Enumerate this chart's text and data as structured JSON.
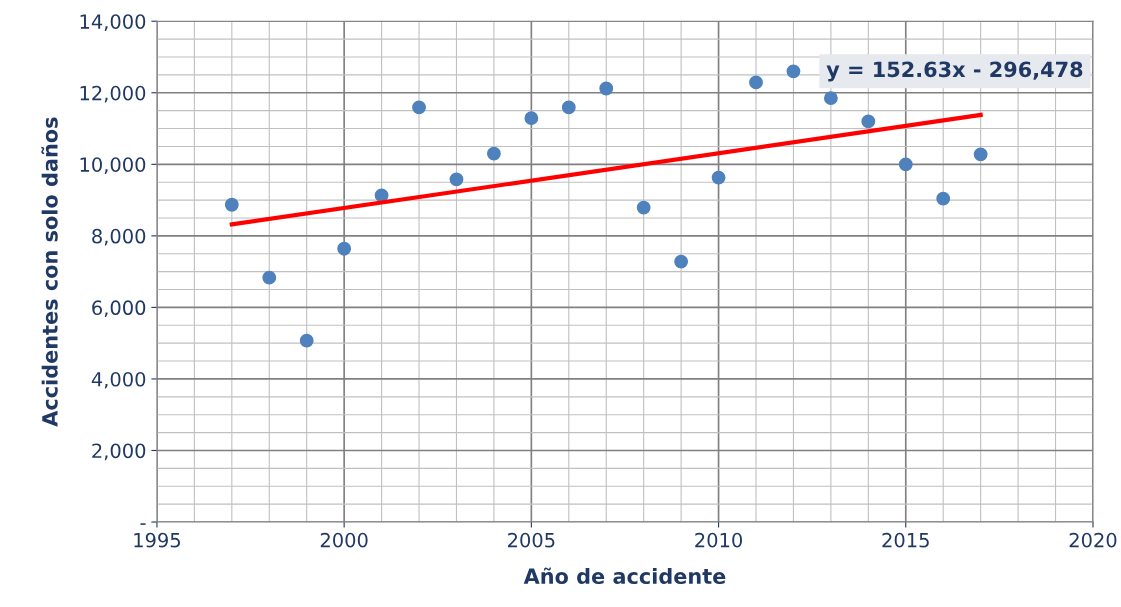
{
  "chart_data": {
    "type": "scatter",
    "xlabel": "Año de accidente",
    "ylabel": "Accidentes con solo daños",
    "series": [
      {
        "color": "#4f81bd",
        "marker": "circle",
        "x": [
          1997,
          1998,
          1999,
          2000,
          2001,
          2002,
          2003,
          2004,
          2005,
          2006,
          2007,
          2008,
          2009,
          2010,
          2011,
          2012,
          2013,
          2014,
          2015,
          2016,
          2017
        ],
        "values": [
          8870,
          6830,
          5070,
          7640,
          9130,
          11590,
          9580,
          10300,
          11290,
          11590,
          12120,
          8790,
          7280,
          9630,
          12290,
          12600,
          11850,
          11200,
          10000,
          9040,
          10280
        ]
      },
      {
        "type": "line",
        "color": "#ff0000",
        "marker": "none",
        "x": [
          1997,
          2017
        ],
        "values": [
          8320,
          11380
        ]
      }
    ],
    "annotations": [
      "y = 152.63x - 296,478"
    ],
    "xlim": [
      1995,
      2020
    ],
    "xticks": [
      1995,
      2000,
      2005,
      2010,
      2015,
      2020
    ],
    "ylim": [
      0,
      14000
    ],
    "yticks": [
      {
        "value": 0,
        "label": "-"
      },
      {
        "value": 2000,
        "label": "2,000"
      },
      {
        "value": 4000,
        "label": "4,000"
      },
      {
        "value": 6000,
        "label": "6,000"
      },
      {
        "value": 8000,
        "label": "8,000"
      },
      {
        "value": 10000,
        "label": "10,000"
      },
      {
        "value": 12000,
        "label": "12,000"
      },
      {
        "value": 14000,
        "label": "14,000"
      }
    ],
    "grid": true
  }
}
